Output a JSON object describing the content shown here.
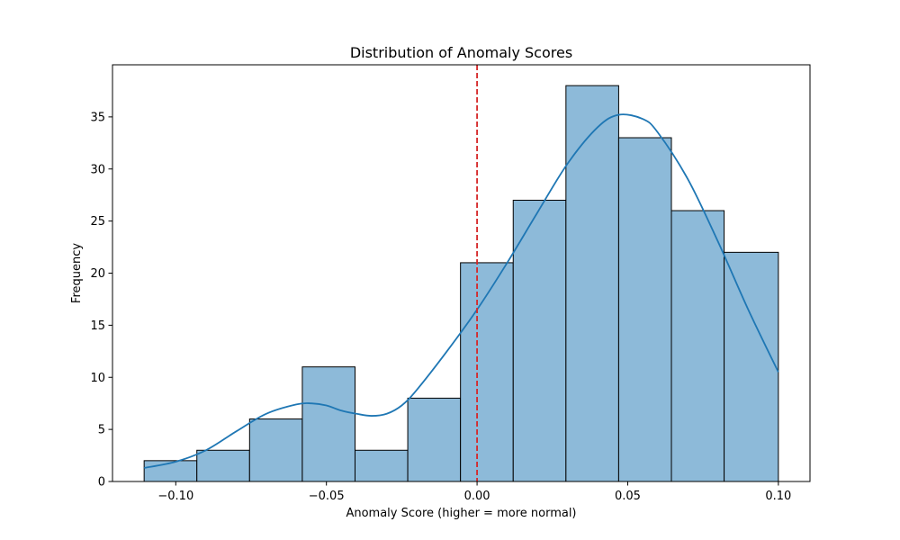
{
  "chart_data": {
    "type": "bar",
    "title": "Distribution of Anomaly Scores",
    "xlabel": "Anomaly Score (higher = more normal)",
    "ylabel": "Frequency",
    "xlim": [
      -0.121,
      0.1105
    ],
    "ylim": [
      0,
      40
    ],
    "xticks": [
      -0.1,
      -0.05,
      0.0,
      0.05,
      0.1
    ],
    "xtick_labels": [
      "−0.10",
      "−0.05",
      "0.00",
      "0.05",
      "0.10"
    ],
    "yticks": [
      0,
      5,
      10,
      15,
      20,
      25,
      30,
      35
    ],
    "ytick_labels": [
      "0",
      "5",
      "10",
      "15",
      "20",
      "25",
      "30",
      "35"
    ],
    "bins": [
      -0.1105,
      -0.093,
      -0.0755,
      -0.058,
      -0.0405,
      -0.023,
      -0.0055,
      0.012,
      0.0295,
      0.047,
      0.0645,
      0.082,
      0.1
    ],
    "counts": [
      2,
      3,
      6,
      11,
      3,
      8,
      21,
      27,
      38,
      33,
      26,
      22
    ],
    "bar_color": "#8dbad9",
    "bar_edge_color": "#000000",
    "kde": {
      "color": "#1f77b4",
      "x": [
        -0.1105,
        -0.1,
        -0.09,
        -0.08,
        -0.07,
        -0.06,
        -0.055,
        -0.05,
        -0.045,
        -0.04,
        -0.035,
        -0.03,
        -0.025,
        -0.02,
        -0.01,
        0.0,
        0.01,
        0.02,
        0.03,
        0.04,
        0.047,
        0.055,
        0.06,
        0.07,
        0.08,
        0.09,
        0.1
      ],
      "y": [
        1.3,
        1.9,
        3.0,
        4.8,
        6.5,
        7.4,
        7.5,
        7.3,
        6.8,
        6.5,
        6.3,
        6.5,
        7.3,
        8.8,
        12.5,
        16.5,
        21.0,
        25.8,
        30.5,
        34.0,
        35.2,
        34.8,
        33.5,
        29.0,
        23.0,
        16.5,
        10.5
      ]
    },
    "threshold": {
      "x": 0.0,
      "color": "#d62728",
      "style": "dashed"
    },
    "grid": false,
    "legend": "none"
  }
}
